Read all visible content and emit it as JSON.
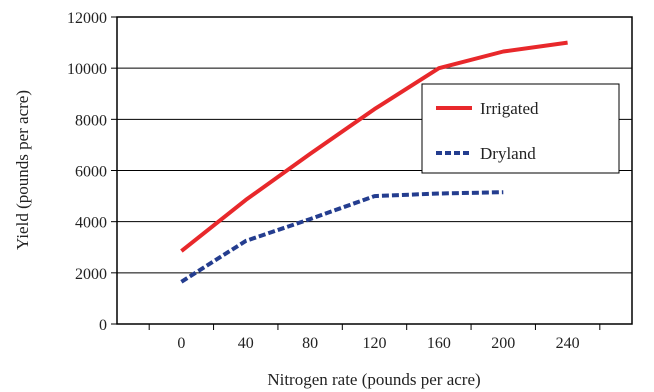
{
  "chart_data": {
    "type": "line",
    "title": "",
    "xlabel": "Nitrogen rate (pounds per acre)",
    "ylabel": "Yield (pounds per acre)",
    "xlim": [
      -40,
      280
    ],
    "ylim": [
      0,
      12000
    ],
    "x_ticks": [
      0,
      40,
      80,
      120,
      160,
      200,
      240
    ],
    "y_ticks": [
      0,
      2000,
      4000,
      6000,
      8000,
      10000,
      12000
    ],
    "grid": "horizontal",
    "legend": "right",
    "series": [
      {
        "name": "Irrigated",
        "color": "#e8282b",
        "style": "solid",
        "x": [
          0,
          40,
          80,
          120,
          160,
          200,
          240
        ],
        "y": [
          2850,
          4850,
          6650,
          8400,
          10000,
          10650,
          11000
        ]
      },
      {
        "name": "Dryland",
        "color": "#243d8f",
        "style": "dashed",
        "x": [
          0,
          40,
          80,
          120,
          160,
          200
        ],
        "y": [
          1650,
          3250,
          4100,
          5000,
          5100,
          5150
        ]
      }
    ]
  }
}
